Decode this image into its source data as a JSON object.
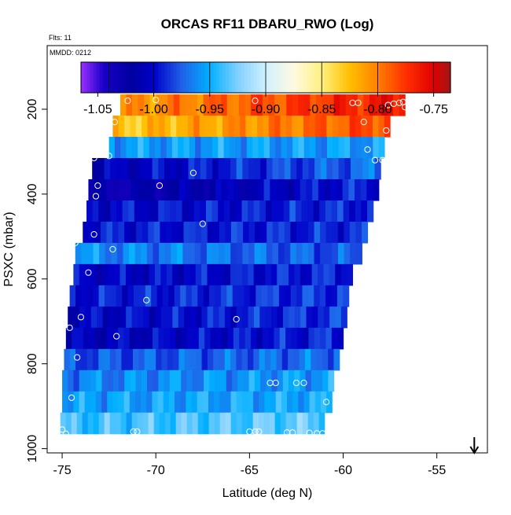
{
  "chart_data": {
    "type": "heatmap",
    "title": "ORCAS RF11 DBARU_RWO (Log)",
    "annotations": {
      "flights": "Flts: 11",
      "date": "MMDD: 0212"
    },
    "xlabel": "Latitude (deg N)",
    "ylabel": "PSXC (mbar)",
    "xlim": [
      -75.8,
      -52.3
    ],
    "ylim": [
      1010,
      50
    ],
    "xticks": [
      -75,
      -70,
      -65,
      -60,
      -55
    ],
    "xtick_labels": [
      "-75",
      "-70",
      "-65",
      "-60",
      "-55"
    ],
    "yticks": [
      200,
      400,
      600,
      800,
      1000
    ],
    "ytick_labels": [
      "200",
      "400",
      "600",
      "800",
      "1000"
    ],
    "colorbar": {
      "range": [
        -1.065,
        -0.735
      ],
      "ticks": [
        -1.05,
        -1.0,
        -0.95,
        -0.9,
        -0.85,
        -0.8,
        -0.75
      ],
      "tick_labels": [
        "-1.05",
        "-1.00",
        "-0.95",
        "-0.90",
        "-0.85",
        "-0.80",
        "-0.75"
      ],
      "stops": [
        {
          "v": -1.065,
          "c": "#9b30ff"
        },
        {
          "v": -1.045,
          "c": "#1a00c8"
        },
        {
          "v": -1.02,
          "c": "#0000a0"
        },
        {
          "v": -1.0,
          "c": "#0000c8"
        },
        {
          "v": -0.975,
          "c": "#2060e8"
        },
        {
          "v": -0.95,
          "c": "#00b0ff"
        },
        {
          "v": -0.925,
          "c": "#80d0ff"
        },
        {
          "v": -0.9,
          "c": "#d0f0ff"
        },
        {
          "v": -0.875,
          "c": "#fffae0"
        },
        {
          "v": -0.85,
          "c": "#fff080"
        },
        {
          "v": -0.825,
          "c": "#ffc000"
        },
        {
          "v": -0.8,
          "c": "#ff8000"
        },
        {
          "v": -0.775,
          "c": "#ff3000"
        },
        {
          "v": -0.75,
          "c": "#e00000"
        },
        {
          "v": -0.735,
          "c": "#a01818"
        }
      ]
    },
    "rows": [
      {
        "p": 190,
        "lat0": -71.9,
        "lat1": -56.7,
        "v0": -0.81,
        "v1": -0.76
      },
      {
        "p": 240,
        "lat0": -72.3,
        "lat1": -57.5,
        "v0": -0.83,
        "v1": -0.78
      },
      {
        "p": 290,
        "lat0": -72.5,
        "lat1": -57.8,
        "v0": -0.955,
        "v1": -0.955
      },
      {
        "p": 340,
        "lat0": -73.4,
        "lat1": -58.0,
        "v0": -1.01,
        "v1": -0.97
      },
      {
        "p": 390,
        "lat0": -73.6,
        "lat1": -58.1,
        "v0": -1.03,
        "v1": -0.99
      },
      {
        "p": 440,
        "lat0": -73.7,
        "lat1": -58.4,
        "v0": -1.0,
        "v1": -0.99
      },
      {
        "p": 490,
        "lat0": -73.9,
        "lat1": -58.7,
        "v0": -0.995,
        "v1": -0.99
      },
      {
        "p": 540,
        "lat0": -74.3,
        "lat1": -59.0,
        "v0": -0.96,
        "v1": -0.98
      },
      {
        "p": 590,
        "lat0": -74.4,
        "lat1": -59.5,
        "v0": -1.005,
        "v1": -0.99
      },
      {
        "p": 640,
        "lat0": -74.6,
        "lat1": -59.7,
        "v0": -0.995,
        "v1": -0.985
      },
      {
        "p": 690,
        "lat0": -74.7,
        "lat1": -59.8,
        "v0": -1.005,
        "v1": -0.985
      },
      {
        "p": 740,
        "lat0": -74.8,
        "lat1": -60.0,
        "v0": -1.01,
        "v1": -0.99
      },
      {
        "p": 790,
        "lat0": -74.9,
        "lat1": -60.2,
        "v0": -0.98,
        "v1": -0.97
      },
      {
        "p": 840,
        "lat0": -75.0,
        "lat1": -60.5,
        "v0": -0.965,
        "v1": -0.955
      },
      {
        "p": 890,
        "lat0": -75.0,
        "lat1": -60.6,
        "v0": -0.955,
        "v1": -0.95
      },
      {
        "p": 940,
        "lat0": -75.1,
        "lat1": -61.0,
        "v0": -0.94,
        "v1": -0.93
      }
    ],
    "points": [
      {
        "lat": -71.5,
        "p": 180
      },
      {
        "lat": -70.0,
        "p": 178
      },
      {
        "lat": -64.7,
        "p": 180
      },
      {
        "lat": -59.5,
        "p": 185
      },
      {
        "lat": -59.2,
        "p": 185
      },
      {
        "lat": -57.6,
        "p": 190
      },
      {
        "lat": -57.3,
        "p": 187
      },
      {
        "lat": -57.0,
        "p": 185
      },
      {
        "lat": -56.8,
        "p": 183
      },
      {
        "lat": -56.7,
        "p": 195
      },
      {
        "lat": -72.2,
        "p": 230
      },
      {
        "lat": -58.9,
        "p": 230
      },
      {
        "lat": -57.7,
        "p": 250
      },
      {
        "lat": -58.7,
        "p": 295
      },
      {
        "lat": -58.3,
        "p": 320
      },
      {
        "lat": -57.9,
        "p": 320
      },
      {
        "lat": -73.3,
        "p": 315
      },
      {
        "lat": -72.5,
        "p": 310
      },
      {
        "lat": -68.0,
        "p": 350
      },
      {
        "lat": -73.1,
        "p": 380
      },
      {
        "lat": -69.8,
        "p": 380
      },
      {
        "lat": -73.2,
        "p": 405
      },
      {
        "lat": -73.3,
        "p": 495
      },
      {
        "lat": -67.5,
        "p": 470
      },
      {
        "lat": -74.3,
        "p": 515
      },
      {
        "lat": -72.3,
        "p": 530
      },
      {
        "lat": -73.6,
        "p": 585
      },
      {
        "lat": -70.5,
        "p": 650
      },
      {
        "lat": -65.7,
        "p": 695
      },
      {
        "lat": -74.0,
        "p": 690
      },
      {
        "lat": -74.6,
        "p": 715
      },
      {
        "lat": -72.1,
        "p": 735
      },
      {
        "lat": -74.2,
        "p": 785
      },
      {
        "lat": -63.9,
        "p": 845
      },
      {
        "lat": -63.6,
        "p": 845
      },
      {
        "lat": -62.5,
        "p": 845
      },
      {
        "lat": -62.1,
        "p": 845
      },
      {
        "lat": -74.5,
        "p": 880
      },
      {
        "lat": -60.9,
        "p": 890
      },
      {
        "lat": -75.0,
        "p": 955
      },
      {
        "lat": -74.8,
        "p": 965
      },
      {
        "lat": -71.2,
        "p": 960
      },
      {
        "lat": -71.0,
        "p": 960
      },
      {
        "lat": -65.0,
        "p": 960
      },
      {
        "lat": -64.7,
        "p": 960
      },
      {
        "lat": -64.5,
        "p": 960
      },
      {
        "lat": -63.0,
        "p": 962
      },
      {
        "lat": -62.7,
        "p": 962
      },
      {
        "lat": -61.8,
        "p": 963
      },
      {
        "lat": -61.4,
        "p": 964
      },
      {
        "lat": -61.1,
        "p": 964
      }
    ],
    "arrow_lat": -53.0
  }
}
